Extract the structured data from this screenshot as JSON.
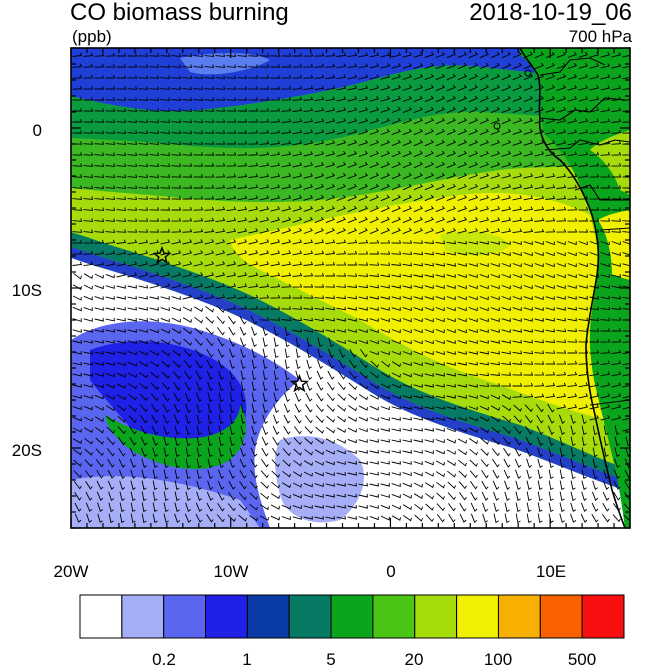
{
  "header": {
    "title": "CO biomass burning",
    "units": "(ppb)",
    "datetime": "2018-10-19_06",
    "level": "700 hPa"
  },
  "map": {
    "lon_range": [
      -20,
      15
    ],
    "lat_range": [
      -25,
      5
    ],
    "x_ticks": [
      "20W",
      "10W",
      "0",
      "10E"
    ],
    "y_ticks": [
      "0",
      "10S",
      "20S"
    ],
    "markers": [
      {
        "name": "star-marker-north",
        "lon": -14.3,
        "lat": -8.0
      },
      {
        "name": "star-marker-south",
        "lon": -5.7,
        "lat": -16.0
      }
    ]
  },
  "colorbar": {
    "colors": [
      "#ffffff",
      "#a5aef7",
      "#5a66f0",
      "#1f21e6",
      "#0a3aa6",
      "#077a64",
      "#0aa51c",
      "#4ac415",
      "#a6db0c",
      "#f0f000",
      "#f8b000",
      "#f86000",
      "#f81010"
    ],
    "labels": [
      "0.2",
      "1",
      "5",
      "20",
      "100",
      "500"
    ]
  }
}
